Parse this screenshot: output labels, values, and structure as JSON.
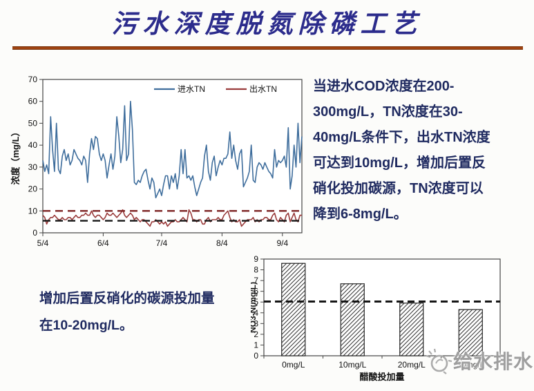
{
  "slide": {
    "title": "污水深度脱氮除磷工艺",
    "divider_color": "#a0430f",
    "title_color": "#2c2c8c",
    "text_color": "#1f2a60"
  },
  "right_text": {
    "lines": [
      "当进水COD浓度在200-",
      "300mg/L，TN浓度在30-",
      "40mg/L条件下，出水TN浓度",
      "可达到10mg/L，增加后置反",
      "硝化投加碳源，TN浓度可以",
      "降到6-8mg/L。"
    ]
  },
  "bottom_text": {
    "lines": [
      "增加后置反硝化的碳源投加量",
      "在10-20mg/L。"
    ]
  },
  "watermark": {
    "logo_icon": "water-drop-logo",
    "text": "给水排水",
    "color": "#9e9e9e"
  },
  "chart_data": [
    {
      "type": "line",
      "title": "",
      "xlabel": "",
      "ylabel": "浓度（mg/L）",
      "ylim": [
        0,
        70
      ],
      "yticks": [
        0,
        10,
        20,
        30,
        40,
        50,
        60,
        70
      ],
      "xtick_labels": [
        "5/4",
        "6/4",
        "7/4",
        "8/4",
        "9/4"
      ],
      "xtick_indices": [
        0,
        31,
        61,
        92,
        123
      ],
      "grid": false,
      "legend_position": "top-center-inside",
      "series": [
        {
          "name": "进水TN",
          "color": "#3e6d9c",
          "values": [
            33,
            28,
            31,
            27,
            53,
            38,
            28,
            50,
            29,
            27,
            35,
            38,
            33,
            36,
            31,
            33,
            38,
            36,
            34,
            33,
            31,
            35,
            33,
            23,
            36,
            43,
            38,
            44,
            43,
            36,
            33,
            36,
            33,
            25,
            31,
            36,
            29,
            35,
            53,
            44,
            32,
            38,
            58,
            33,
            36,
            60,
            47,
            23,
            22,
            24,
            23,
            26,
            28,
            29,
            24,
            20,
            25,
            23,
            16,
            18,
            20,
            17,
            22,
            26,
            26,
            20,
            26,
            23,
            27,
            20,
            26,
            38,
            27,
            38,
            25,
            26,
            24,
            26,
            21,
            17,
            20,
            23,
            25,
            35,
            40,
            28,
            24,
            32,
            35,
            26,
            30,
            33,
            31,
            34,
            34,
            36,
            46,
            34,
            40,
            33,
            29,
            36,
            38,
            21,
            23,
            25,
            28,
            40,
            24,
            23,
            30,
            32,
            31,
            29,
            32,
            30,
            28,
            27,
            25,
            38,
            30,
            33,
            32,
            33,
            35,
            30,
            48,
            20,
            26,
            40,
            30,
            50,
            32,
            44
          ]
        },
        {
          "name": "出水TN",
          "color": "#993a3a",
          "values": [
            8,
            7,
            4,
            6,
            7,
            7,
            8,
            7,
            6,
            6,
            7,
            6,
            6,
            7,
            7,
            6,
            7,
            8,
            7,
            7,
            8,
            8,
            9,
            8,
            8,
            10,
            8,
            7,
            8,
            8,
            7,
            6,
            7,
            9,
            8,
            8,
            9,
            8,
            7,
            8,
            9,
            10.5,
            8,
            7,
            8,
            9,
            8,
            6,
            7,
            6,
            5,
            6,
            6,
            5,
            4,
            3,
            5,
            5,
            6,
            5,
            4,
            5,
            4,
            5,
            3,
            4,
            5,
            5,
            6,
            5,
            5,
            6,
            7,
            6,
            5,
            10.5,
            9,
            6,
            6,
            5,
            6,
            6,
            4,
            4,
            6,
            7,
            5,
            6,
            6,
            6,
            7,
            6,
            6,
            8,
            9,
            10,
            7,
            5,
            6,
            5,
            5,
            6,
            3,
            4,
            5,
            6,
            6,
            6,
            7,
            5,
            6,
            5,
            6,
            6,
            7,
            7,
            6,
            6,
            8,
            9,
            6,
            5,
            7,
            6,
            5,
            8,
            9,
            5,
            7,
            9,
            6,
            5,
            8,
            8
          ]
        }
      ],
      "reference_lines": [
        {
          "value": 10,
          "style": "dashed",
          "color": "#7a1f1f"
        },
        {
          "value": 5.5,
          "style": "dashed",
          "color": "#161616"
        }
      ]
    },
    {
      "type": "bar",
      "title": "",
      "categories": [
        "0mg/L",
        "10mg/L",
        "20mg/L",
        "30mg/L"
      ],
      "values": [
        8.6,
        6.7,
        4.9,
        4.3
      ],
      "xlabel": "醋酸投加量",
      "ylabel": "NO3-N(mg/L)",
      "ylim": [
        0,
        9
      ],
      "yticks": [
        0,
        1,
        2,
        3,
        4,
        5,
        6,
        7,
        8,
        9
      ],
      "bar_fill": "diagonal-hatch",
      "grid": false,
      "reference_lines": [
        {
          "value": 5.05,
          "style": "dashed",
          "color": "#161616"
        }
      ]
    }
  ]
}
